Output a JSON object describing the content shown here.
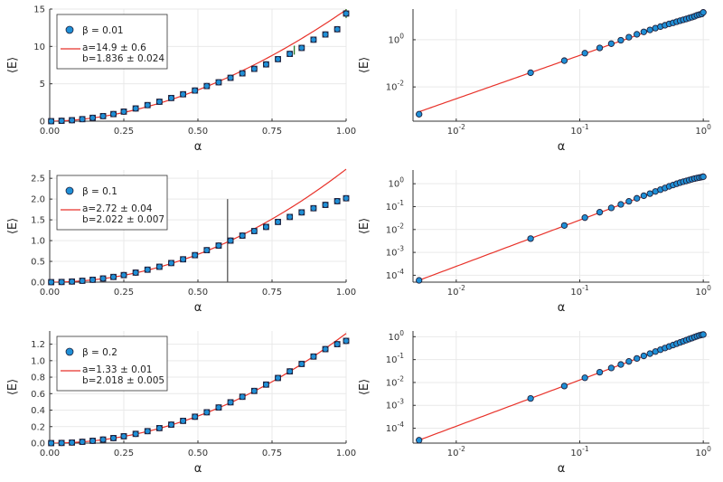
{
  "colors": {
    "marker": "#1f8fd6",
    "marker_edge": "#1f1f3a",
    "fit": "#e8322a",
    "grid": "#e9e9e9",
    "axis": "#333333",
    "vline": "#555555"
  },
  "chart_data": [
    {
      "type": "scatter",
      "scale": "linear",
      "xlabel": "α",
      "ylabel": "⟨E⟩",
      "xlim": [
        0,
        1
      ],
      "ylim": [
        0,
        15
      ],
      "xticks": [
        0,
        0.25,
        0.5,
        0.75,
        1.0
      ],
      "xtick_labels": [
        "0.00",
        "0.25",
        "0.50",
        "0.75",
        "1.00"
      ],
      "yticks": [
        0,
        5,
        10,
        15
      ],
      "ytick_labels": [
        "0",
        "5",
        "10",
        "15"
      ],
      "legend": {
        "series": "β = 0.01",
        "fit_a": "a=14.9 ± 0.6",
        "fit_b": "b=1.836 ± 0.024",
        "position": "top-left"
      },
      "fit": {
        "a": 14.9,
        "b": 1.836
      },
      "x": [
        0.005,
        0.04,
        0.075,
        0.11,
        0.145,
        0.18,
        0.215,
        0.25,
        0.29,
        0.33,
        0.37,
        0.41,
        0.45,
        0.49,
        0.53,
        0.57,
        0.61,
        0.65,
        0.69,
        0.73,
        0.77,
        0.81,
        0.85,
        0.89,
        0.93,
        0.97,
        1.0
      ],
      "values": [
        0.0,
        0.05,
        0.13,
        0.27,
        0.45,
        0.68,
        0.95,
        1.28,
        1.7,
        2.15,
        2.6,
        3.1,
        3.6,
        4.1,
        4.7,
        5.2,
        5.8,
        6.4,
        7.0,
        7.6,
        8.3,
        9.0,
        9.8,
        10.9,
        11.6,
        12.3,
        14.4
      ],
      "error_bars": [
        {
          "x": 0.825,
          "y": 9.5,
          "err": 0.6
        },
        {
          "x": 1.0,
          "y": 14.4,
          "err": 0.6
        }
      ]
    },
    {
      "type": "scatter",
      "scale": "log",
      "xlabel": "α",
      "ylabel": "⟨E⟩",
      "xlim_log10": [
        -2.35,
        0.05
      ],
      "ylim_log10": [
        -3.45,
        1.3
      ],
      "xticks_log10": [
        -2,
        -1,
        0
      ],
      "xtick_labels": [
        "10",
        "10",
        "10"
      ],
      "xtick_exps": [
        "-2",
        "-1",
        "0"
      ],
      "yticks_log10": [
        -2,
        0
      ],
      "ytick_labels": [
        "10",
        "10"
      ],
      "ytick_exps": [
        "-2",
        "0"
      ],
      "fit": {
        "a": 14.9,
        "b": 1.836
      },
      "x": [
        0.005,
        0.04,
        0.075,
        0.11,
        0.145,
        0.18,
        0.215,
        0.25,
        0.29,
        0.33,
        0.37,
        0.41,
        0.45,
        0.49,
        0.53,
        0.57,
        0.61,
        0.65,
        0.69,
        0.73,
        0.77,
        0.81,
        0.85,
        0.89,
        0.93,
        0.97,
        1.0
      ],
      "values": [
        0.0007,
        0.04,
        0.13,
        0.27,
        0.45,
        0.68,
        0.95,
        1.28,
        1.7,
        2.15,
        2.6,
        3.1,
        3.6,
        4.1,
        4.7,
        5.2,
        5.8,
        6.4,
        7.0,
        7.6,
        8.3,
        9.0,
        9.8,
        10.9,
        11.6,
        12.3,
        14.4
      ]
    },
    {
      "type": "scatter",
      "scale": "linear",
      "xlabel": "α",
      "ylabel": "⟨E⟩",
      "xlim": [
        0,
        1
      ],
      "ylim": [
        0,
        2.7
      ],
      "xticks": [
        0,
        0.25,
        0.5,
        0.75,
        1.0
      ],
      "xtick_labels": [
        "0.00",
        "0.25",
        "0.50",
        "0.75",
        "1.00"
      ],
      "yticks": [
        0,
        0.5,
        1.0,
        1.5,
        2.0,
        2.5
      ],
      "ytick_labels": [
        "0.0",
        "0.5",
        "1.0",
        "1.5",
        "2.0",
        "2.5"
      ],
      "legend": {
        "series": "β = 0.1",
        "fit_a": "a=2.72 ± 0.04",
        "fit_b": "b=2.022 ± 0.007",
        "position": "top-left"
      },
      "fit": {
        "a": 2.72,
        "b": 2.022
      },
      "vline": {
        "x": 0.6,
        "y0": 0.0,
        "y1": 2.0
      },
      "x": [
        0.005,
        0.04,
        0.075,
        0.11,
        0.145,
        0.18,
        0.215,
        0.25,
        0.29,
        0.33,
        0.37,
        0.41,
        0.45,
        0.49,
        0.53,
        0.57,
        0.61,
        0.65,
        0.69,
        0.73,
        0.77,
        0.81,
        0.85,
        0.89,
        0.93,
        0.97,
        1.0
      ],
      "values": [
        0.0,
        0.004,
        0.015,
        0.033,
        0.057,
        0.088,
        0.125,
        0.17,
        0.23,
        0.3,
        0.37,
        0.46,
        0.55,
        0.65,
        0.77,
        0.88,
        1.0,
        1.12,
        1.23,
        1.33,
        1.45,
        1.57,
        1.68,
        1.78,
        1.86,
        1.95,
        2.02
      ]
    },
    {
      "type": "scatter",
      "scale": "log",
      "xlabel": "α",
      "ylabel": "⟨E⟩",
      "xlim_log10": [
        -2.35,
        0.05
      ],
      "ylim_log10": [
        -4.3,
        0.6
      ],
      "xticks_log10": [
        -2,
        -1,
        0
      ],
      "xtick_labels": [
        "10",
        "10",
        "10"
      ],
      "xtick_exps": [
        "-2",
        "-1",
        "0"
      ],
      "yticks_log10": [
        -4,
        -3,
        -2,
        -1,
        0
      ],
      "ytick_labels": [
        "10",
        "10",
        "10",
        "10",
        "10"
      ],
      "ytick_exps": [
        "-4",
        "-3",
        "-2",
        "-1",
        "0"
      ],
      "fit": {
        "a": 2.72,
        "b": 2.022
      },
      "x": [
        0.005,
        0.04,
        0.075,
        0.11,
        0.145,
        0.18,
        0.215,
        0.25,
        0.29,
        0.33,
        0.37,
        0.41,
        0.45,
        0.49,
        0.53,
        0.57,
        0.61,
        0.65,
        0.69,
        0.73,
        0.77,
        0.81,
        0.85,
        0.89,
        0.93,
        0.97,
        1.0
      ],
      "values": [
        6e-05,
        0.004,
        0.015,
        0.033,
        0.057,
        0.088,
        0.125,
        0.17,
        0.23,
        0.3,
        0.37,
        0.46,
        0.55,
        0.65,
        0.77,
        0.88,
        1.0,
        1.12,
        1.23,
        1.33,
        1.45,
        1.57,
        1.68,
        1.78,
        1.86,
        1.95,
        2.02
      ]
    },
    {
      "type": "scatter",
      "scale": "linear",
      "xlabel": "α",
      "ylabel": "⟨E⟩",
      "xlim": [
        0,
        1
      ],
      "ylim": [
        0,
        1.36
      ],
      "xticks": [
        0,
        0.25,
        0.5,
        0.75,
        1.0
      ],
      "xtick_labels": [
        "0.00",
        "0.25",
        "0.50",
        "0.75",
        "1.00"
      ],
      "yticks": [
        0,
        0.2,
        0.4,
        0.6,
        0.8,
        1.0,
        1.2
      ],
      "ytick_labels": [
        "0.0",
        "0.2",
        "0.4",
        "0.6",
        "0.8",
        "1.0",
        "1.2"
      ],
      "legend": {
        "series": "β = 0.2",
        "fit_a": "a=1.33 ± 0.01",
        "fit_b": "b=2.018 ± 0.005",
        "position": "top-left"
      },
      "fit": {
        "a": 1.33,
        "b": 2.018
      },
      "x": [
        0.005,
        0.04,
        0.075,
        0.11,
        0.145,
        0.18,
        0.215,
        0.25,
        0.29,
        0.33,
        0.37,
        0.41,
        0.45,
        0.49,
        0.53,
        0.57,
        0.61,
        0.65,
        0.69,
        0.73,
        0.77,
        0.81,
        0.85,
        0.89,
        0.93,
        0.97,
        1.0
      ],
      "values": [
        0.0,
        0.002,
        0.007,
        0.016,
        0.028,
        0.043,
        0.061,
        0.083,
        0.112,
        0.145,
        0.182,
        0.224,
        0.27,
        0.32,
        0.374,
        0.432,
        0.495,
        0.562,
        0.633,
        0.71,
        0.79,
        0.87,
        0.96,
        1.05,
        1.14,
        1.2,
        1.24
      ]
    },
    {
      "type": "scatter",
      "scale": "log",
      "xlabel": "α",
      "ylabel": "⟨E⟩",
      "xlim_log10": [
        -2.35,
        0.05
      ],
      "ylim_log10": [
        -4.65,
        0.25
      ],
      "xticks_log10": [
        -2,
        -1,
        0
      ],
      "xtick_labels": [
        "10",
        "10",
        "10"
      ],
      "xtick_exps": [
        "-2",
        "-1",
        "0"
      ],
      "yticks_log10": [
        -4,
        -3,
        -2,
        -1,
        0
      ],
      "ytick_labels": [
        "10",
        "10",
        "10",
        "10",
        "10"
      ],
      "ytick_exps": [
        "-4",
        "-3",
        "-2",
        "-1",
        "0"
      ],
      "fit": {
        "a": 1.33,
        "b": 2.018
      },
      "x": [
        0.005,
        0.04,
        0.075,
        0.11,
        0.145,
        0.18,
        0.215,
        0.25,
        0.29,
        0.33,
        0.37,
        0.41,
        0.45,
        0.49,
        0.53,
        0.57,
        0.61,
        0.65,
        0.69,
        0.73,
        0.77,
        0.81,
        0.85,
        0.89,
        0.93,
        0.97,
        1.0
      ],
      "values": [
        3e-05,
        0.002,
        0.007,
        0.016,
        0.028,
        0.043,
        0.061,
        0.083,
        0.112,
        0.145,
        0.182,
        0.224,
        0.27,
        0.32,
        0.374,
        0.432,
        0.495,
        0.562,
        0.633,
        0.71,
        0.79,
        0.87,
        0.96,
        1.05,
        1.14,
        1.2,
        1.24
      ]
    }
  ]
}
